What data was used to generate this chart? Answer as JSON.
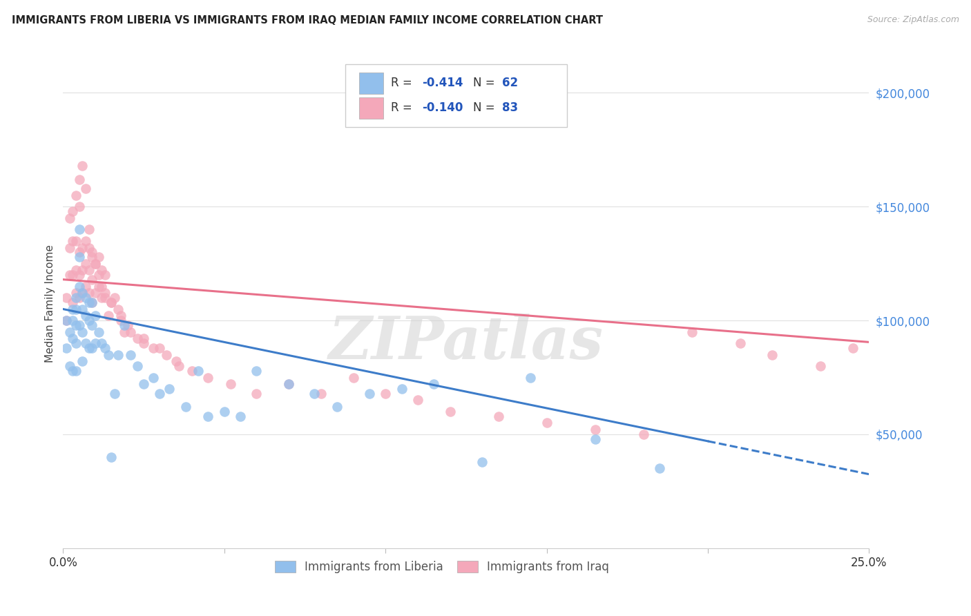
{
  "title": "IMMIGRANTS FROM LIBERIA VS IMMIGRANTS FROM IRAQ MEDIAN FAMILY INCOME CORRELATION CHART",
  "source": "Source: ZipAtlas.com",
  "ylabel": "Median Family Income",
  "yticks": [
    0,
    50000,
    100000,
    150000,
    200000
  ],
  "ytick_labels": [
    "",
    "$50,000",
    "$100,000",
    "$150,000",
    "$200,000"
  ],
  "xlim": [
    0,
    0.25
  ],
  "ylim": [
    0,
    215000
  ],
  "liberia_R": -0.414,
  "liberia_N": 62,
  "iraq_R": -0.14,
  "iraq_N": 83,
  "liberia_color": "#92bfec",
  "iraq_color": "#f4a8ba",
  "liberia_line_color": "#3d7cc9",
  "iraq_line_color": "#e8708a",
  "background_color": "#ffffff",
  "grid_color": "#e0e0e0",
  "watermark_text": "ZIPatlas",
  "liberia_intercept": 105000,
  "liberia_slope": -290000,
  "iraq_intercept": 118000,
  "iraq_slope": -110000,
  "liberia_x": [
    0.001,
    0.001,
    0.002,
    0.002,
    0.003,
    0.003,
    0.003,
    0.003,
    0.004,
    0.004,
    0.004,
    0.004,
    0.004,
    0.005,
    0.005,
    0.005,
    0.005,
    0.006,
    0.006,
    0.006,
    0.006,
    0.007,
    0.007,
    0.007,
    0.008,
    0.008,
    0.008,
    0.009,
    0.009,
    0.009,
    0.01,
    0.01,
    0.011,
    0.012,
    0.013,
    0.014,
    0.015,
    0.016,
    0.017,
    0.019,
    0.021,
    0.023,
    0.025,
    0.028,
    0.03,
    0.033,
    0.038,
    0.042,
    0.045,
    0.05,
    0.055,
    0.06,
    0.07,
    0.078,
    0.085,
    0.095,
    0.105,
    0.115,
    0.13,
    0.145,
    0.165,
    0.185
  ],
  "liberia_y": [
    100000,
    88000,
    95000,
    80000,
    105000,
    100000,
    92000,
    78000,
    110000,
    105000,
    98000,
    90000,
    78000,
    140000,
    128000,
    115000,
    98000,
    112000,
    105000,
    95000,
    82000,
    110000,
    102000,
    90000,
    108000,
    100000,
    88000,
    108000,
    98000,
    88000,
    102000,
    90000,
    95000,
    90000,
    88000,
    85000,
    40000,
    68000,
    85000,
    98000,
    85000,
    80000,
    72000,
    75000,
    68000,
    70000,
    62000,
    78000,
    58000,
    60000,
    58000,
    78000,
    72000,
    68000,
    62000,
    68000,
    70000,
    72000,
    38000,
    75000,
    48000,
    35000
  ],
  "iraq_x": [
    0.001,
    0.001,
    0.002,
    0.002,
    0.002,
    0.003,
    0.003,
    0.003,
    0.003,
    0.004,
    0.004,
    0.004,
    0.004,
    0.005,
    0.005,
    0.005,
    0.005,
    0.006,
    0.006,
    0.006,
    0.007,
    0.007,
    0.007,
    0.008,
    0.008,
    0.008,
    0.009,
    0.009,
    0.009,
    0.01,
    0.01,
    0.011,
    0.011,
    0.012,
    0.012,
    0.013,
    0.013,
    0.014,
    0.015,
    0.016,
    0.017,
    0.018,
    0.019,
    0.021,
    0.023,
    0.025,
    0.028,
    0.032,
    0.036,
    0.04,
    0.045,
    0.052,
    0.06,
    0.07,
    0.08,
    0.09,
    0.1,
    0.11,
    0.12,
    0.135,
    0.15,
    0.165,
    0.18,
    0.195,
    0.21,
    0.22,
    0.235,
    0.245,
    0.005,
    0.006,
    0.007,
    0.008,
    0.009,
    0.01,
    0.011,
    0.012,
    0.013,
    0.015,
    0.018,
    0.02,
    0.025,
    0.03,
    0.035
  ],
  "iraq_y": [
    110000,
    100000,
    120000,
    132000,
    145000,
    108000,
    120000,
    135000,
    148000,
    112000,
    122000,
    135000,
    155000,
    110000,
    120000,
    130000,
    150000,
    112000,
    122000,
    132000,
    115000,
    125000,
    135000,
    112000,
    122000,
    132000,
    108000,
    118000,
    128000,
    112000,
    125000,
    115000,
    128000,
    110000,
    122000,
    110000,
    120000,
    102000,
    108000,
    110000,
    105000,
    100000,
    95000,
    95000,
    92000,
    90000,
    88000,
    85000,
    80000,
    78000,
    75000,
    72000,
    68000,
    72000,
    68000,
    75000,
    68000,
    65000,
    60000,
    58000,
    55000,
    52000,
    50000,
    95000,
    90000,
    85000,
    80000,
    88000,
    162000,
    168000,
    158000,
    140000,
    130000,
    125000,
    120000,
    115000,
    112000,
    108000,
    102000,
    98000,
    92000,
    88000,
    82000
  ]
}
